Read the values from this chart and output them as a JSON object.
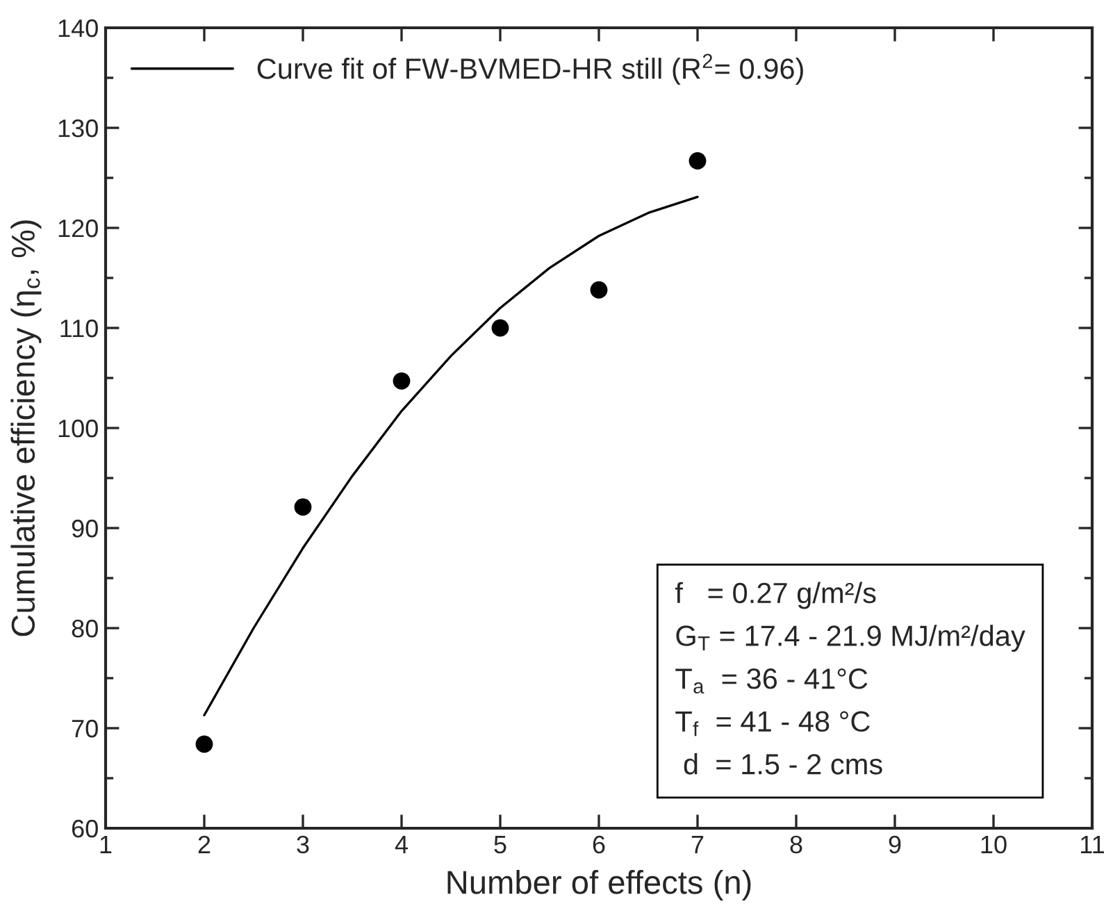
{
  "chart_data": {
    "type": "scatter",
    "xlabel": "Number of effects (n)",
    "ylabel": "Cumulative efficiency (η$_{c}$, %)",
    "xlim": [
      1,
      11
    ],
    "xticks": [
      1,
      2,
      3,
      4,
      5,
      6,
      7,
      8,
      9,
      10,
      11
    ],
    "ylim": [
      60,
      140
    ],
    "yticks": [
      60,
      70,
      80,
      90,
      100,
      110,
      120,
      130,
      140
    ],
    "grid": false,
    "legend": "top left",
    "series": [
      {
        "marker": "circle",
        "color": "#000000",
        "x": [
          2,
          3,
          4,
          5,
          6,
          7
        ],
        "values": [
          68.4,
          92.1,
          104.7,
          110.0,
          113.8,
          126.7
        ]
      },
      {
        "type": "line",
        "marker": "none",
        "name": "Curve fit of FW-BVMED-HR still (R$^{2}$= 0.96)",
        "color": "#000000",
        "line_style": "solid",
        "x": [
          2,
          2.5,
          3,
          3.5,
          4,
          4.5,
          5,
          5.5,
          6,
          6.5,
          7
        ],
        "values": [
          71.3,
          80.0,
          88.0,
          95.2,
          101.7,
          107.2,
          112.0,
          116.0,
          119.2,
          121.5,
          123.1
        ]
      }
    ],
    "annotations": [
      "f   = 0.27 g/m²/s",
      "G$_{T}$ = 17.4 - 21.9 MJ/m²/day",
      "T$_{a}$  = 36 - 41°C",
      "T$_{f}$  = 41 - 48 °C",
      " d  = 1.5 - 2 cms"
    ]
  }
}
